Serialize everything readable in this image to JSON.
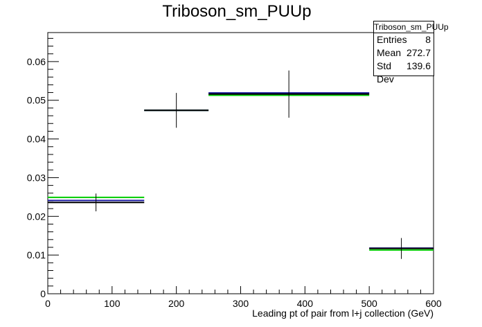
{
  "chart_data": {
    "type": "histogram",
    "title": "Triboson_sm_PUUp",
    "xlabel": "Leading pt of pair from l+j collection (GeV)",
    "ylabel": "",
    "xlim": [
      0,
      600
    ],
    "ylim": [
      0,
      0.0675
    ],
    "x_ticks": [
      0,
      100,
      200,
      300,
      400,
      500,
      600
    ],
    "y_ticks": [
      0,
      0.01,
      0.02,
      0.03,
      0.04,
      0.05,
      0.06
    ],
    "y_tick_labels": [
      "0",
      "0.01",
      "0.02",
      "0.03",
      "0.04",
      "0.05",
      "0.06"
    ],
    "bins": [
      {
        "x_low": 0,
        "x_high": 150,
        "x_center": 75
      },
      {
        "x_low": 150,
        "x_high": 250,
        "x_center": 200
      },
      {
        "x_low": 250,
        "x_high": 500,
        "x_center": 375
      },
      {
        "x_low": 500,
        "x_high": 600,
        "x_center": 550
      }
    ],
    "series": [
      {
        "name": "",
        "color": "#00cc00",
        "values": [
          0.0249,
          0.0474,
          0.0513,
          0.0113
        ]
      },
      {
        "name": "",
        "color": "#1a1aa0",
        "values": [
          0.0241,
          0.0474,
          0.0519,
          0.0118
        ]
      },
      {
        "name": "",
        "color": "#000000",
        "values": [
          0.0236,
          0.0474,
          0.0516,
          0.0117
        ],
        "errors": [
          0.0023,
          0.0045,
          0.0061,
          0.0027
        ]
      }
    ],
    "stats": {
      "title": "Triboson_sm_PUUp",
      "entries_label": "Entries",
      "entries": "8",
      "mean_label": "Mean",
      "mean": "272.7",
      "stddev_label": "Std Dev",
      "stddev": "139.6"
    }
  }
}
